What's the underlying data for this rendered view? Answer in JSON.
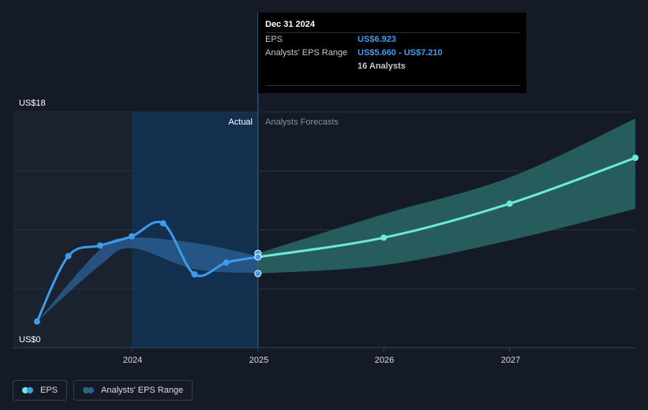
{
  "chart_data": {
    "type": "line",
    "y_axis": {
      "top_label": "US$18",
      "bottom_label": "US$0",
      "ylim": [
        0,
        18
      ]
    },
    "x_axis": {
      "ticks": [
        "2024",
        "2025",
        "2026",
        "2027"
      ]
    },
    "region_labels": {
      "actual": "Actual",
      "forecast": "Analysts Forecasts"
    },
    "series": [
      {
        "name": "EPS",
        "color": "#3b9cec",
        "points": [
          {
            "x": "2023-03-31",
            "y": 2.0
          },
          {
            "x": "2023-06-30",
            "y": 7.0
          },
          {
            "x": "2023-09-30",
            "y": 7.8
          },
          {
            "x": "2023-12-31",
            "y": 8.5
          },
          {
            "x": "2024-03-31",
            "y": 9.5
          },
          {
            "x": "2024-06-30",
            "y": 5.6
          },
          {
            "x": "2024-09-30",
            "y": 6.5
          },
          {
            "x": "2024-12-31",
            "y": 6.923
          }
        ]
      },
      {
        "name": "EPS forecast",
        "color": "#6ee8d9",
        "points": [
          {
            "x": "2024-12-31",
            "y": 6.923
          },
          {
            "x": "2025-12-31",
            "y": 8.4
          },
          {
            "x": "2026-12-31",
            "y": 11.0
          },
          {
            "x": "2027-12-31",
            "y": 14.5
          }
        ]
      },
      {
        "name": "Analysts' EPS Range",
        "color": "#2a6e6a",
        "upper": [
          {
            "x": "2024-12-31",
            "y": 7.21
          },
          {
            "x": "2025-12-31",
            "y": 10.2
          },
          {
            "x": "2026-12-31",
            "y": 13.0
          },
          {
            "x": "2027-12-31",
            "y": 17.5
          }
        ],
        "lower": [
          {
            "x": "2024-12-31",
            "y": 5.66
          },
          {
            "x": "2025-12-31",
            "y": 6.3
          },
          {
            "x": "2026-12-31",
            "y": 8.2
          },
          {
            "x": "2027-12-31",
            "y": 10.6
          }
        ]
      },
      {
        "name": "Past analysts' EPS range",
        "color": "#2b5f93",
        "upper": [
          {
            "x": "2023-03-31",
            "y": 2.0
          },
          {
            "x": "2023-09-30",
            "y": 7.5
          },
          {
            "x": "2023-12-31",
            "y": 8.4
          },
          {
            "x": "2024-06-30",
            "y": 8.0
          },
          {
            "x": "2024-12-31",
            "y": 7.0
          }
        ],
        "lower": [
          {
            "x": "2023-03-31",
            "y": 2.0
          },
          {
            "x": "2023-09-30",
            "y": 6.3
          },
          {
            "x": "2023-12-31",
            "y": 7.6
          },
          {
            "x": "2024-06-30",
            "y": 6.0
          },
          {
            "x": "2024-12-31",
            "y": 5.7
          }
        ]
      }
    ],
    "grid": true
  },
  "tooltip": {
    "date": "Dec 31 2024",
    "eps_label": "EPS",
    "eps_value": "US$6.923",
    "range_label": "Analysts' EPS Range",
    "range_value": "US$5.660 - US$7.210",
    "analysts": "16 Analysts"
  },
  "legend": [
    {
      "label": "EPS",
      "colors": [
        "#6ee8d9",
        "#3b9cec"
      ]
    },
    {
      "label": "Analysts' EPS Range",
      "colors": [
        "#2a6e6a",
        "#2b5f93"
      ]
    }
  ],
  "colors": {
    "background": "#151b26",
    "past_region": "#1a2230",
    "actual_highlight": "#12304d",
    "gridline": "#2a303c",
    "axis_text": "#d9dde3",
    "muted_text": "#8a909a"
  }
}
